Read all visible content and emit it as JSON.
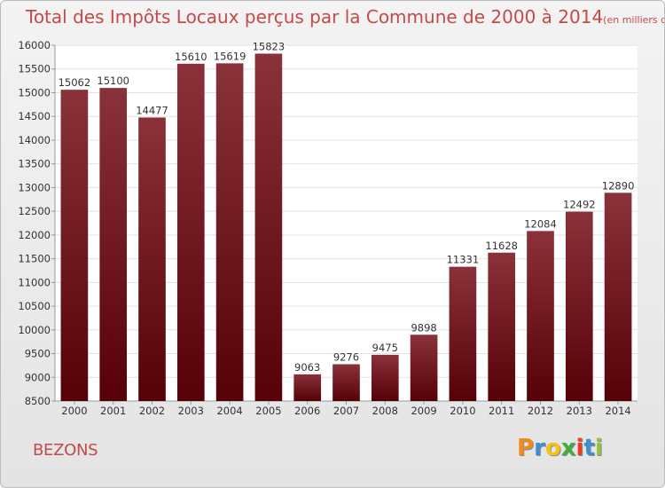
{
  "title": "Total des Impôts Locaux perçus par la Commune de 2000 à 2014",
  "unit_note": "(en milliers d'€)",
  "commune": "BEZONS",
  "brand": {
    "letters": [
      "P",
      "r",
      "o",
      "x",
      "i",
      "t",
      "i"
    ],
    "colors": [
      "#f08a1c",
      "#3f8fd4",
      "#f4c21a",
      "#3fae3f",
      "#e8401c",
      "#3f8fd4",
      "#8fc63f"
    ]
  },
  "colors": {
    "title": "#c44a4a",
    "bar_top": "#8a323a",
    "bar_bottom": "#560008",
    "plot_bg": "#ffffff",
    "grid": "#e2e2e2",
    "axis": "#9a9a9a"
  },
  "chart_data": {
    "type": "bar",
    "categories": [
      "2000",
      "2001",
      "2002",
      "2003",
      "2004",
      "2005",
      "2006",
      "2007",
      "2008",
      "2009",
      "2010",
      "2011",
      "2012",
      "2013",
      "2014"
    ],
    "values": [
      15062,
      15100,
      14477,
      15610,
      15619,
      15823,
      9063,
      9276,
      9475,
      9898,
      11331,
      11628,
      12084,
      12492,
      12890
    ],
    "data_labels": [
      "15062",
      "15100",
      "14477",
      "15610",
      "15619",
      "15823",
      "9063",
      "9276",
      "9475",
      "9898",
      "11331",
      "11628",
      "12084",
      "12492",
      "12890"
    ],
    "y_ticks": [
      8500,
      9000,
      9500,
      10000,
      10500,
      11000,
      11500,
      12000,
      12500,
      13000,
      13500,
      14000,
      14500,
      15000,
      15500,
      16000
    ],
    "y_tick_labels": [
      "8500",
      "9000",
      "9500",
      "10000",
      "10500",
      "11000",
      "11500",
      "12000",
      "12500",
      "13000",
      "13500",
      "14000",
      "14500",
      "15000",
      "15500",
      "16000"
    ],
    "ylim": [
      8500,
      16000
    ],
    "xlabel": "",
    "ylabel": "",
    "grid": true
  }
}
